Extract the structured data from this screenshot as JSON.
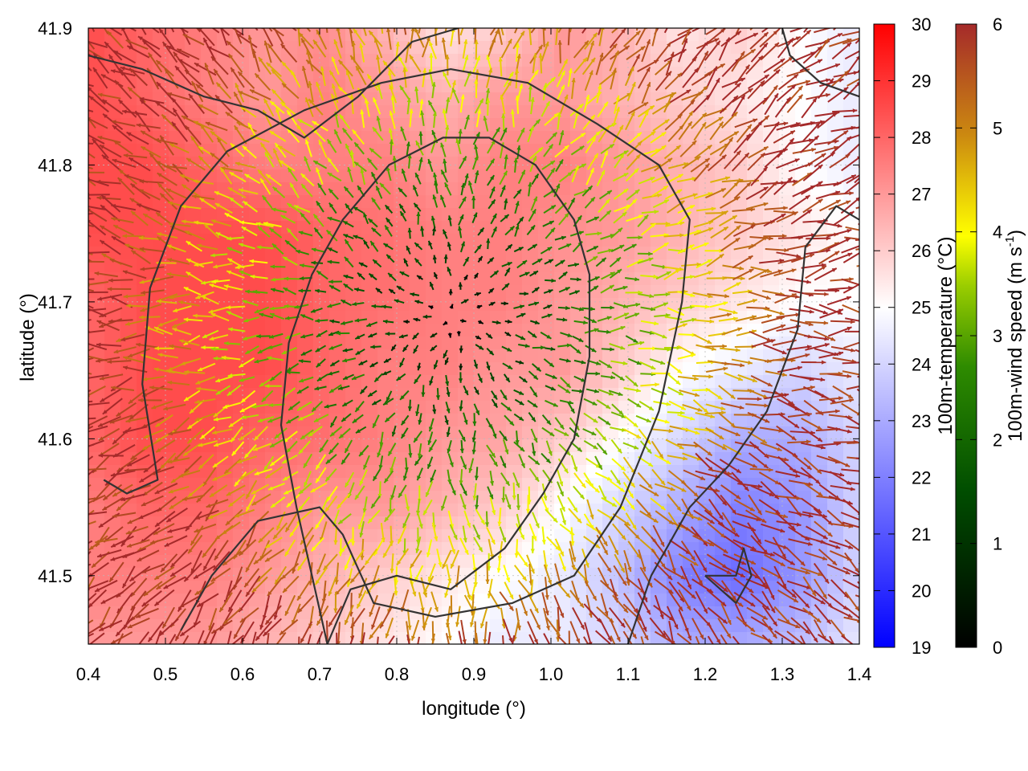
{
  "chart_data": {
    "type": "heatmap",
    "title": "",
    "xlabel": "longitude (°)",
    "ylabel": "latitude (°)",
    "xlim": [
      0.4,
      1.4
    ],
    "ylim": [
      41.45,
      41.9
    ],
    "xticks": [
      "0.4",
      "0.5",
      "0.6",
      "0.7",
      "0.8",
      "0.9",
      "1.0",
      "1.1",
      "1.2",
      "1.3",
      "1.4"
    ],
    "yticks": [
      "41.5",
      "41.6",
      "41.7",
      "41.8",
      "41.9"
    ],
    "grid": true,
    "temperature": {
      "label": "100m-temperature (°C)",
      "range": [
        19,
        30
      ],
      "ticks": [
        "19",
        "20",
        "21",
        "22",
        "23",
        "24",
        "25",
        "26",
        "27",
        "28",
        "29",
        "30"
      ],
      "colors": [
        "#0000ff",
        "#ffffff",
        "#ff0000"
      ],
      "field": [
        [
          28.5,
          28,
          27.5,
          27,
          27.2,
          26.5,
          25.5,
          26,
          27,
          26.5,
          25.5,
          26,
          25,
          24.5
        ],
        [
          28.5,
          28,
          27.5,
          27,
          27.5,
          27,
          26.5,
          27,
          27,
          26.5,
          26,
          25.5,
          25,
          24.5
        ],
        [
          28.5,
          28.5,
          28,
          27.5,
          27.5,
          27.5,
          27,
          27.5,
          27.5,
          27,
          26.5,
          26,
          25,
          24.5
        ],
        [
          28.5,
          28.5,
          28.5,
          28.5,
          28,
          27.8,
          27.5,
          27.5,
          27.2,
          27,
          26.5,
          26,
          25.5,
          25
        ],
        [
          28,
          28.5,
          28.5,
          28.5,
          28,
          27.8,
          27.5,
          27.5,
          27,
          26.5,
          26,
          25.5,
          25,
          25
        ],
        [
          28,
          28.5,
          28.5,
          28.5,
          28,
          27.5,
          27.5,
          27,
          27,
          26,
          25,
          24.5,
          24,
          24.5
        ],
        [
          28,
          28.5,
          28.5,
          28,
          27.8,
          27.5,
          27,
          26.8,
          26,
          25,
          24,
          23,
          23,
          24
        ],
        [
          27.5,
          28,
          28,
          27.5,
          27,
          27,
          26.5,
          26,
          25,
          24,
          23,
          22,
          22.5,
          24
        ],
        [
          27.5,
          27.5,
          27.5,
          27,
          26.5,
          26,
          25.5,
          25,
          24.5,
          23.5,
          22,
          21.5,
          22.5,
          24
        ],
        [
          27,
          27,
          27,
          26.5,
          26,
          25.5,
          25,
          24.5,
          24.5,
          24,
          23,
          23,
          23.5,
          24.5
        ]
      ]
    },
    "wind_speed": {
      "label": "100m-wind speed (m s⁻¹)",
      "label_main": "100m-wind speed (m s",
      "label_sup": "-1",
      "label_end": ")",
      "range": [
        0,
        6
      ],
      "ticks": [
        "0",
        "1",
        "2",
        "3",
        "4",
        "5",
        "6"
      ],
      "colors": [
        "#000000",
        "#006400",
        "#7fbf00",
        "#ffff00",
        "#c8860a",
        "#a52a2a"
      ]
    },
    "wind_field": {
      "description": "Radial outflow field centered near (0.87, 41.69); speed increases with distance from center",
      "center": [
        0.87,
        41.69
      ],
      "max_speed": 6
    },
    "contours": [
      {
        "name": "inner",
        "points": [
          [
            0.71,
            41.45
          ],
          [
            0.74,
            41.49
          ],
          [
            0.8,
            41.5
          ],
          [
            0.87,
            41.49
          ],
          [
            0.94,
            41.52
          ],
          [
            0.99,
            41.56
          ],
          [
            1.03,
            41.6
          ],
          [
            1.05,
            41.66
          ],
          [
            1.05,
            41.72
          ],
          [
            1.03,
            41.76
          ],
          [
            0.98,
            41.8
          ],
          [
            0.92,
            41.82
          ],
          [
            0.86,
            41.82
          ],
          [
            0.79,
            41.8
          ],
          [
            0.73,
            41.76
          ],
          [
            0.69,
            41.72
          ],
          [
            0.66,
            41.67
          ],
          [
            0.65,
            41.61
          ],
          [
            0.67,
            41.55
          ],
          [
            0.69,
            41.5
          ],
          [
            0.71,
            41.45
          ]
        ]
      },
      {
        "name": "middle",
        "points": [
          [
            0.52,
            41.46
          ],
          [
            0.56,
            41.5
          ],
          [
            0.62,
            41.54
          ],
          [
            0.7,
            41.55
          ],
          [
            0.73,
            41.53
          ],
          [
            0.77,
            41.48
          ],
          [
            0.85,
            41.47
          ],
          [
            0.95,
            41.48
          ],
          [
            1.03,
            41.5
          ],
          [
            1.09,
            41.55
          ],
          [
            1.14,
            41.62
          ],
          [
            1.17,
            41.7
          ],
          [
            1.18,
            41.76
          ],
          [
            1.14,
            41.8
          ],
          [
            1.06,
            41.83
          ],
          [
            0.97,
            41.86
          ],
          [
            0.87,
            41.87
          ],
          [
            0.78,
            41.86
          ],
          [
            0.68,
            41.84
          ],
          [
            0.58,
            41.81
          ],
          [
            0.52,
            41.77
          ],
          [
            0.48,
            41.71
          ],
          [
            0.47,
            41.64
          ],
          [
            0.49,
            41.57
          ],
          [
            0.45,
            41.56
          ],
          [
            0.42,
            41.57
          ]
        ]
      },
      {
        "name": "outer-east",
        "points": [
          [
            1.1,
            41.45
          ],
          [
            1.13,
            41.5
          ],
          [
            1.18,
            41.55
          ],
          [
            1.23,
            41.58
          ],
          [
            1.28,
            41.62
          ],
          [
            1.32,
            41.68
          ],
          [
            1.33,
            41.74
          ],
          [
            1.37,
            41.77
          ],
          [
            1.4,
            41.76
          ]
        ]
      },
      {
        "name": "outer-north",
        "points": [
          [
            0.4,
            41.88
          ],
          [
            0.47,
            41.87
          ],
          [
            0.55,
            41.85
          ],
          [
            0.62,
            41.84
          ],
          [
            0.68,
            41.82
          ],
          [
            0.75,
            41.85
          ],
          [
            0.82,
            41.89
          ],
          [
            0.88,
            41.9
          ]
        ]
      },
      {
        "name": "northeast",
        "points": [
          [
            1.3,
            41.9
          ],
          [
            1.31,
            41.88
          ],
          [
            1.35,
            41.86
          ],
          [
            1.4,
            41.85
          ]
        ]
      },
      {
        "name": "cold-spot",
        "points": [
          [
            1.2,
            41.5
          ],
          [
            1.24,
            41.5
          ],
          [
            1.25,
            41.52
          ],
          [
            1.26,
            41.5
          ],
          [
            1.24,
            41.48
          ],
          [
            1.2,
            41.5
          ]
        ]
      }
    ]
  }
}
